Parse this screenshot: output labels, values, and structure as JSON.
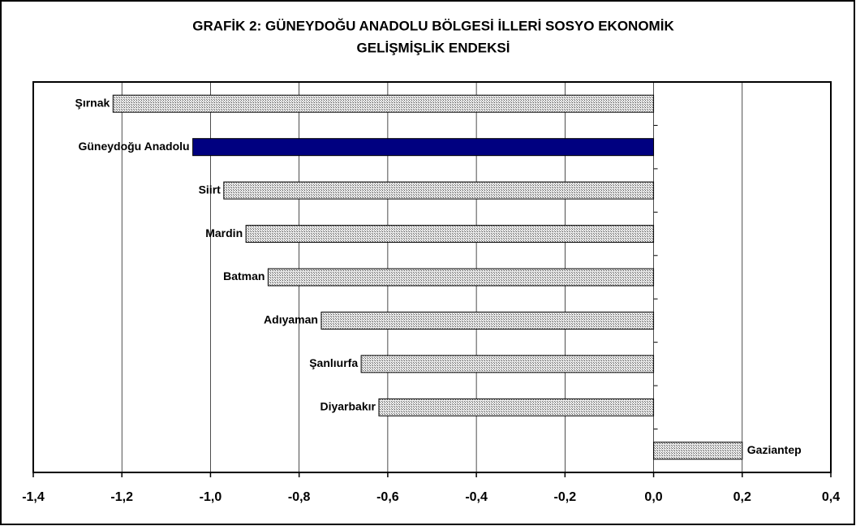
{
  "chart_data": {
    "type": "barh",
    "title": [
      "GRAFİK 2: GÜNEYDOĞU ANADOLU BÖLGESİ İLLERİ SOSYO EKONOMİK",
      "GELİŞMİŞLİK ENDEKSİ"
    ],
    "categories": [
      "Şırnak",
      "Güneydoğu Anadolu",
      "Siirt",
      "Mardin",
      "Batman",
      "Adıyaman",
      "Şanlıurfa",
      "Diyarbakır",
      "Gaziantep"
    ],
    "values": [
      -1.22,
      -1.04,
      -0.97,
      -0.92,
      -0.87,
      -0.75,
      -0.66,
      -0.62,
      0.2
    ],
    "colors": [
      "#b8b8b8",
      "#000080",
      "#b8b8b8",
      "#b8b8b8",
      "#b8b8b8",
      "#b8b8b8",
      "#b8b8b8",
      "#b8b8b8",
      "#b8b8b8"
    ],
    "xlim": [
      -1.4,
      0.4
    ],
    "xticks": [
      {
        "value": -1.4,
        "label": "-1,4"
      },
      {
        "value": -1.2,
        "label": "-1,2"
      },
      {
        "value": -1.0,
        "label": "-1,0"
      },
      {
        "value": -0.8,
        "label": "-0,8"
      },
      {
        "value": -0.6,
        "label": "-0,6"
      },
      {
        "value": -0.4,
        "label": "-0,4"
      },
      {
        "value": -0.2,
        "label": "-0,2"
      },
      {
        "value": 0,
        "label": "0,0"
      },
      {
        "value": 0.2,
        "label": "0,2"
      },
      {
        "value": 0.4,
        "label": "0,4"
      }
    ],
    "grid": true
  }
}
